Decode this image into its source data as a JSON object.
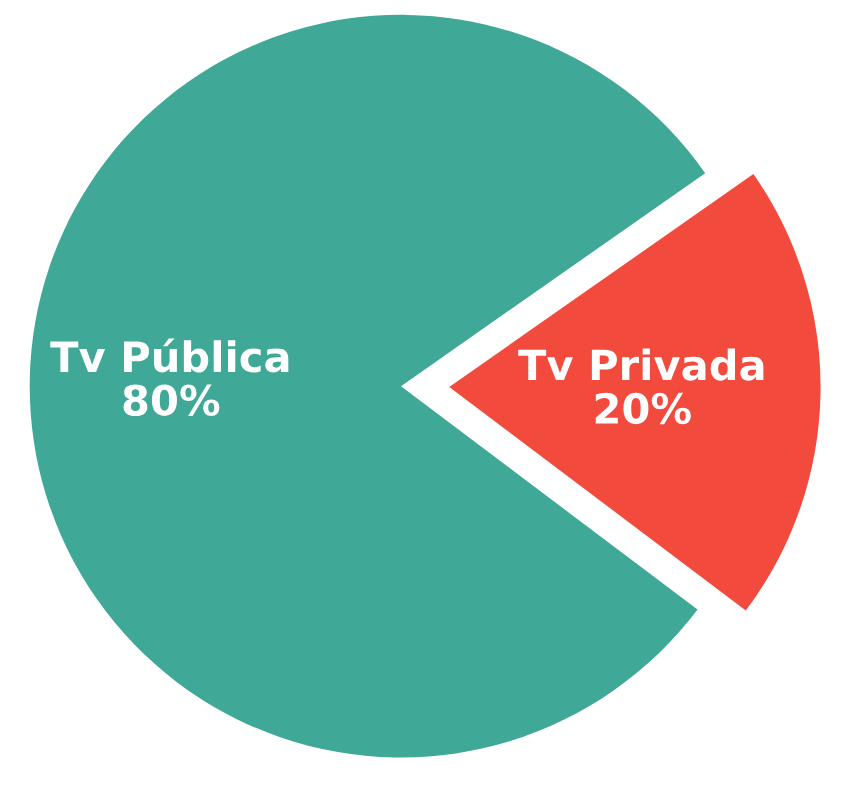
{
  "chart_data": {
    "type": "pie",
    "categories": [
      "Tv Pública",
      "Tv Privada"
    ],
    "values": [
      80,
      20
    ],
    "value_labels": [
      "80%",
      "20%"
    ],
    "colors": [
      "#3fa896",
      "#f24a3c"
    ]
  }
}
